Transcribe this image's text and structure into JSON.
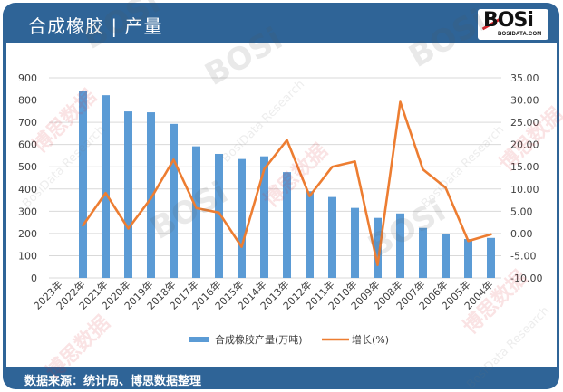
{
  "header": {
    "title": "合成橡胶 | 产量"
  },
  "logo": {
    "mark": "BOSi",
    "url": "BOSIDATA.COM"
  },
  "footer": {
    "source": "数据来源：统计局、博思数据整理"
  },
  "watermark": {
    "logo": "BOSi",
    "cn": "博思数据",
    "en": "BosiData Research",
    "url": "BOSIDATA.COM"
  },
  "colors": {
    "frame": "#2f6497",
    "bar": "#5b9bd5",
    "line": "#ed7d31",
    "grid": "#d9d9d9",
    "axis_text": "#404040"
  },
  "chart_data": {
    "type": "bar",
    "title": "合成橡胶 | 产量",
    "categories": [
      "2023年",
      "2022年",
      "2021年",
      "2020年",
      "2019年",
      "2018年",
      "2017年",
      "2016年",
      "2015年",
      "2014年",
      "2013年",
      "2012年",
      "2011年",
      "2010年",
      "2009年",
      "2008年",
      "2007年",
      "2006年",
      "2005年",
      "2004年"
    ],
    "series": [
      {
        "name": "合成橡胶产量(万吨)",
        "type": "bar",
        "axis": "left",
        "color": "#5b9bd5",
        "values": [
          null,
          840,
          822,
          749,
          745,
          693,
          592,
          558,
          535,
          547,
          476,
          390,
          364,
          315,
          270,
          290,
          225,
          197,
          175,
          180
        ]
      },
      {
        "name": "增长(%)",
        "type": "line",
        "axis": "right",
        "color": "#ed7d31",
        "values": [
          null,
          1.8,
          9.1,
          1.1,
          7.9,
          16.6,
          5.7,
          4.7,
          -3.0,
          14.5,
          21.0,
          8.4,
          15.0,
          16.2,
          -7.1,
          29.6,
          14.4,
          10.3,
          -1.7,
          -0.2
        ]
      }
    ],
    "xlabel": "",
    "ylabel": "",
    "y2label": "",
    "ylim": [
      0,
      900
    ],
    "y_ticks": [
      0,
      100,
      200,
      300,
      400,
      500,
      600,
      700,
      800,
      900
    ],
    "y_tick_labels": [
      "0",
      "100",
      "200",
      "300",
      "400",
      "500",
      "600",
      "700",
      "800",
      "900"
    ],
    "y2lim": [
      -10,
      35
    ],
    "y2_ticks": [
      -10,
      -5,
      0,
      5,
      10,
      15,
      20,
      25,
      30,
      35
    ],
    "y2_tick_labels": [
      "-10.00",
      "-5.00",
      "0.00",
      "5.00",
      "10.00",
      "15.00",
      "20.00",
      "25.00",
      "30.00",
      "35.00"
    ],
    "grid": true,
    "legend_position": "bottom",
    "legend": [
      "合成橡胶产量(万吨)",
      "增长(%)"
    ]
  }
}
